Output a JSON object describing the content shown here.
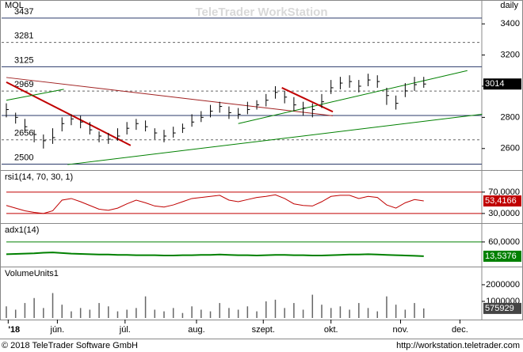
{
  "header": {
    "symbol": "MOL",
    "period": "daily",
    "watermark": "TeleTrader WorkStation"
  },
  "footer": {
    "copyright": "© 2018 TeleTrader Software GmbH",
    "url": "http://workstation.teletrader.com"
  },
  "chart_data": [
    {
      "type": "ohlc",
      "color": "#000000",
      "xlim": [
        0,
        51
      ],
      "ylim": [
        2477,
        3477
      ],
      "yticks": [
        2600,
        2800,
        3000,
        3200,
        3400
      ],
      "levels": [
        {
          "value": 3437,
          "label": "3437",
          "style": "solid"
        },
        {
          "value": 3281,
          "label": "3281",
          "style": "dashed"
        },
        {
          "value": 3125,
          "label": "3125",
          "style": "solid"
        },
        {
          "value": 2969,
          "label": "2969",
          "style": "dashed"
        },
        {
          "value": 2812,
          "style": "solid"
        },
        {
          "value": 2656,
          "label": "2656",
          "style": "dashed"
        },
        {
          "value": 2500,
          "label": "2500",
          "style": "solid"
        }
      ],
      "trendlines": [
        {
          "color": "#c00000",
          "width": 2,
          "from": [
            0,
            3026
          ],
          "to": [
            13.4,
            2620
          ]
        },
        {
          "color": "#a02020",
          "width": 1,
          "from": [
            0,
            3056
          ],
          "to": [
            35.2,
            2810
          ]
        },
        {
          "color": "#008000",
          "width": 1,
          "from": [
            0,
            2910
          ],
          "to": [
            6.2,
            2980
          ]
        },
        {
          "color": "#008000",
          "width": 1,
          "from": [
            6.6,
            2497
          ],
          "to": [
            51.3,
            2820
          ]
        },
        {
          "color": "#008000",
          "width": 1,
          "from": [
            25,
            2760
          ],
          "to": [
            49.7,
            3100
          ]
        },
        {
          "color": "#c00000",
          "width": 2,
          "from": [
            29.7,
            2990
          ],
          "to": [
            35.2,
            2836
          ]
        }
      ],
      "current": 3014,
      "high": [
        2890,
        2830,
        2790,
        2720,
        2690,
        2730,
        2800,
        2820,
        2810,
        2770,
        2710,
        2700,
        2730,
        2770,
        2790,
        2780,
        2730,
        2720,
        2740,
        2760,
        2820,
        2840,
        2880,
        2900,
        2870,
        2860,
        2900,
        2910,
        2950,
        3000,
        2970,
        2930,
        2900,
        2890,
        2950,
        3040,
        3060,
        3070,
        3040,
        3080,
        3070,
        2990,
        2940,
        3020,
        3060,
        3060
      ],
      "low": [
        2800,
        2760,
        2700,
        2640,
        2600,
        2630,
        2710,
        2750,
        2730,
        2690,
        2640,
        2630,
        2650,
        2690,
        2720,
        2710,
        2660,
        2640,
        2670,
        2700,
        2740,
        2770,
        2800,
        2830,
        2790,
        2790,
        2820,
        2850,
        2870,
        2920,
        2890,
        2840,
        2810,
        2800,
        2860,
        2950,
        2980,
        2990,
        2960,
        3000,
        2990,
        2880,
        2850,
        2930,
        2970,
        2990
      ],
      "close": [
        2850,
        2800,
        2740,
        2690,
        2650,
        2670,
        2760,
        2790,
        2770,
        2720,
        2680,
        2660,
        2680,
        2730,
        2760,
        2740,
        2700,
        2680,
        2700,
        2730,
        2770,
        2800,
        2840,
        2870,
        2830,
        2820,
        2850,
        2880,
        2910,
        2960,
        2930,
        2880,
        2860,
        2850,
        2900,
        2990,
        3020,
        3030,
        3000,
        3040,
        3030,
        2940,
        2890,
        2970,
        3010,
        3014
      ]
    },
    {
      "type": "line",
      "title": "rsi1(14, 70, 30, 1)",
      "color": "#c00000",
      "xlim": [
        0,
        51
      ],
      "ylim": [
        15,
        92
      ],
      "yticks": [
        {
          "value": 70,
          "label": "70,0000"
        },
        {
          "value": 30,
          "label": "30,0000"
        }
      ],
      "current": {
        "value": 53.4166,
        "label": "53,4166"
      },
      "values": [
        45,
        40,
        35,
        32,
        30,
        35,
        55,
        58,
        52,
        45,
        38,
        36,
        40,
        48,
        55,
        50,
        44,
        42,
        46,
        52,
        58,
        60,
        62,
        64,
        55,
        52,
        56,
        60,
        62,
        65,
        58,
        48,
        45,
        44,
        52,
        62,
        64,
        64,
        58,
        62,
        60,
        46,
        40,
        50,
        56,
        53.4166
      ]
    },
    {
      "type": "line",
      "title": "adx1(14)",
      "color": "#008000",
      "xlim": [
        0,
        51
      ],
      "ylim": [
        -15,
        119
      ],
      "yticks": [
        {
          "value": 60,
          "label": "60,0000"
        }
      ],
      "current": {
        "value": 13.5376,
        "label": "13,5376"
      },
      "values": [
        20,
        21,
        22,
        23,
        25,
        26,
        24,
        22,
        21,
        20,
        19,
        19,
        18,
        18,
        17,
        17,
        17,
        16,
        16,
        17,
        17,
        18,
        18,
        19,
        18,
        17,
        17,
        16,
        17,
        18,
        18,
        17,
        17,
        16,
        16,
        17,
        18,
        19,
        19,
        20,
        19,
        18,
        17,
        16,
        15,
        13.5376
      ]
    },
    {
      "type": "bar",
      "title": "VolumeUnits1",
      "color": "#666666",
      "xlim": [
        0,
        51
      ],
      "ylim": [
        0,
        2950000
      ],
      "yticks": [
        2000000,
        1000000
      ],
      "current": 575929,
      "xticks": [
        {
          "value": 0.2,
          "label": "'18"
        },
        {
          "value": 5.5,
          "label": "jún."
        },
        {
          "value": 12.8,
          "label": "júl."
        },
        {
          "value": 20.5,
          "label": "aug."
        },
        {
          "value": 27.7,
          "label": "szept."
        },
        {
          "value": 35,
          "label": "okt."
        },
        {
          "value": 42.5,
          "label": "nov."
        },
        {
          "value": 48.9,
          "label": "dec."
        }
      ],
      "values": [
        700000,
        500000,
        900000,
        1200000,
        600000,
        1500000,
        800000,
        400000,
        600000,
        500000,
        900000,
        700000,
        400000,
        500000,
        600000,
        1300000,
        500000,
        400000,
        600000,
        300000,
        700000,
        500000,
        400000,
        900000,
        600000,
        500000,
        700000,
        400000,
        1000000,
        1100000,
        600000,
        900000,
        500000,
        1400000,
        800000,
        600000,
        700000,
        500000,
        900000,
        600000,
        400000,
        1300000,
        800000,
        500000,
        900000,
        575929
      ]
    }
  ]
}
